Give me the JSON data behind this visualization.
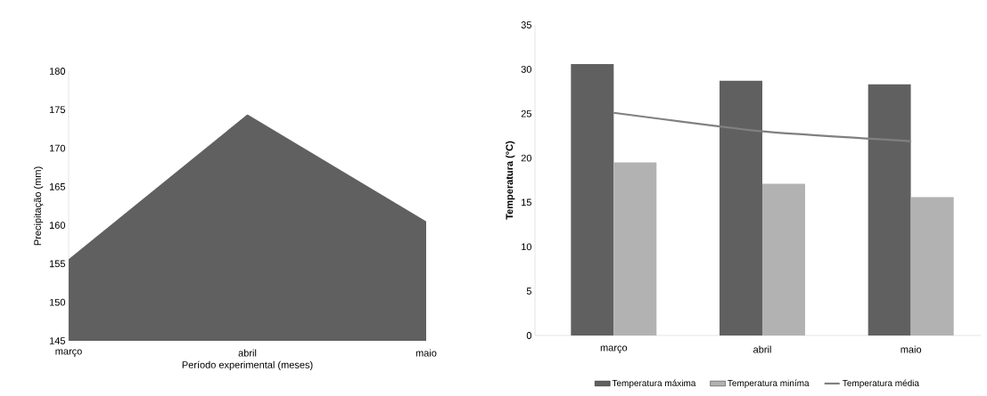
{
  "chart_data": [
    {
      "type": "area",
      "categories": [
        "março",
        "abril",
        "maio"
      ],
      "values": [
        155.6,
        174.4,
        160.5
      ],
      "color": "#606060",
      "ylim": [
        145,
        180
      ],
      "yticks": [
        145,
        150,
        155,
        160,
        165,
        170,
        175,
        180
      ],
      "xlabel": "Período experimental (meses)",
      "ylabel": "Precipitação (mm)"
    },
    {
      "type": "bar",
      "categories": [
        "março",
        "abril",
        "maio"
      ],
      "ylim": [
        0,
        35
      ],
      "yticks": [
        0,
        5,
        10,
        15,
        20,
        25,
        30,
        35
      ],
      "ylabel": "Temperatura (°C)",
      "legend": "bottom",
      "series": [
        {
          "name": "Temperatura máxima",
          "color": "#606060",
          "values": [
            30.6,
            28.7,
            28.3
          ]
        },
        {
          "name": "Temperatura miníma",
          "color": "#b2b2b2",
          "values": [
            19.5,
            17.1,
            15.6
          ]
        },
        {
          "name": "Temperatura média",
          "color": "#808080",
          "type": "line",
          "values": [
            25.1,
            23.0,
            21.9
          ]
        }
      ]
    }
  ]
}
